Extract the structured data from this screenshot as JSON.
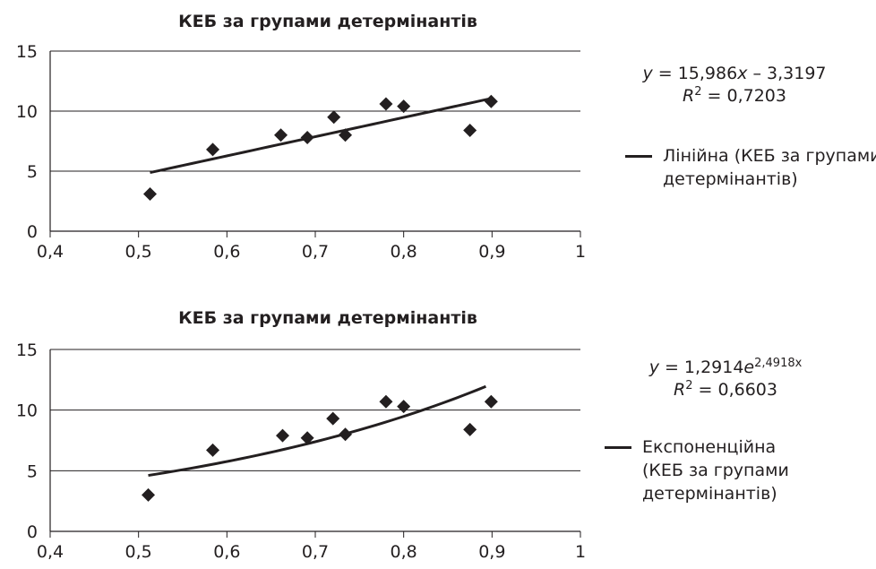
{
  "chart_data": [
    {
      "type": "scatter",
      "title": "КЕБ за групами детермінантів",
      "xlim": [
        0.4,
        1
      ],
      "ylim": [
        0,
        15
      ],
      "x_ticks": [
        "0,4",
        "0,5",
        "0,6",
        "0,7",
        "0,8",
        "0,9",
        "1"
      ],
      "y_ticks": [
        "0",
        "5",
        "10",
        "15"
      ],
      "grid": "horizontal",
      "series": [
        {
          "marker": "diamond",
          "points": [
            {
              "x": 0.513,
              "y": 3.1
            },
            {
              "x": 0.584,
              "y": 6.8
            },
            {
              "x": 0.661,
              "y": 8.0
            },
            {
              "x": 0.691,
              "y": 7.8
            },
            {
              "x": 0.721,
              "y": 9.5
            },
            {
              "x": 0.734,
              "y": 8.0
            },
            {
              "x": 0.78,
              "y": 10.6
            },
            {
              "x": 0.8,
              "y": 10.4
            },
            {
              "x": 0.875,
              "y": 8.4
            },
            {
              "x": 0.899,
              "y": 10.8
            }
          ]
        }
      ],
      "trendline": {
        "kind": "linear",
        "a": 15.986,
        "b": -3.3197,
        "x_range": [
          0.513,
          0.899
        ]
      },
      "equation": {
        "y": "y",
        "mid": " = 15,986",
        "x": "x",
        "tail": " – 3,3197",
        "r_label": "R",
        "r_exp": "2",
        "r_value": " = 0,7203"
      },
      "legend": [
        "Лінійна (КЕБ за групами",
        "детермінантів)"
      ]
    },
    {
      "type": "scatter",
      "title": "КЕБ за групами детермінантів",
      "xlim": [
        0.4,
        1
      ],
      "ylim": [
        0,
        15
      ],
      "x_ticks": [
        "0,4",
        "0,5",
        "0,6",
        "0,7",
        "0,8",
        "0,9",
        "1"
      ],
      "y_ticks": [
        "0",
        "5",
        "10",
        "15"
      ],
      "grid": "horizontal",
      "series": [
        {
          "marker": "diamond",
          "points": [
            {
              "x": 0.511,
              "y": 3.0
            },
            {
              "x": 0.584,
              "y": 6.7
            },
            {
              "x": 0.663,
              "y": 7.9
            },
            {
              "x": 0.691,
              "y": 7.7
            },
            {
              "x": 0.72,
              "y": 9.3
            },
            {
              "x": 0.734,
              "y": 8.0
            },
            {
              "x": 0.78,
              "y": 10.7
            },
            {
              "x": 0.8,
              "y": 10.3
            },
            {
              "x": 0.875,
              "y": 8.4
            },
            {
              "x": 0.899,
              "y": 10.7
            }
          ]
        }
      ],
      "trendline": {
        "kind": "exponential",
        "a": 1.2914,
        "b": 2.4918,
        "x_range": [
          0.511,
          0.893
        ]
      },
      "equation": {
        "y": "y",
        "mid": " = 1,2914",
        "e": "e",
        "e_exp": "2,4918x",
        "r_label": "R",
        "r_exp": "2",
        "r_value": " = 0,6603"
      },
      "legend": [
        "Експоненційна",
        "(КЕБ за групами",
        "детермінантів)"
      ]
    }
  ]
}
